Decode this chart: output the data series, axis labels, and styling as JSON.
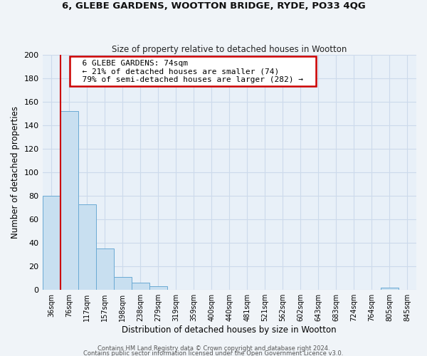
{
  "title": "6, GLEBE GARDENS, WOOTTON BRIDGE, RYDE, PO33 4QG",
  "subtitle": "Size of property relative to detached houses in Wootton",
  "xlabel": "Distribution of detached houses by size in Wootton",
  "ylabel": "Number of detached properties",
  "bin_labels": [
    "36sqm",
    "76sqm",
    "117sqm",
    "157sqm",
    "198sqm",
    "238sqm",
    "279sqm",
    "319sqm",
    "359sqm",
    "400sqm",
    "440sqm",
    "481sqm",
    "521sqm",
    "562sqm",
    "602sqm",
    "643sqm",
    "683sqm",
    "724sqm",
    "764sqm",
    "805sqm",
    "845sqm"
  ],
  "bar_values": [
    80,
    152,
    73,
    35,
    11,
    6,
    3,
    0,
    0,
    0,
    0,
    0,
    0,
    0,
    0,
    0,
    0,
    0,
    0,
    2,
    0
  ],
  "bar_color": "#c8dff0",
  "bar_edge_color": "#6aaad4",
  "vline_x": 0.5,
  "vline_color": "#cc0000",
  "ylim": [
    0,
    200
  ],
  "yticks": [
    0,
    20,
    40,
    60,
    80,
    100,
    120,
    140,
    160,
    180,
    200
  ],
  "annotation_title": "6 GLEBE GARDENS: 74sqm",
  "annotation_line1": "← 21% of detached houses are smaller (74)",
  "annotation_line2": "79% of semi-detached houses are larger (282) →",
  "annotation_box_color": "#ffffff",
  "annotation_box_edge": "#cc0000",
  "grid_color": "#ccdaeb",
  "bg_color": "#e8f0f8",
  "footer1": "Contains HM Land Registry data © Crown copyright and database right 2024.",
  "footer2": "Contains public sector information licensed under the Open Government Licence v3.0."
}
